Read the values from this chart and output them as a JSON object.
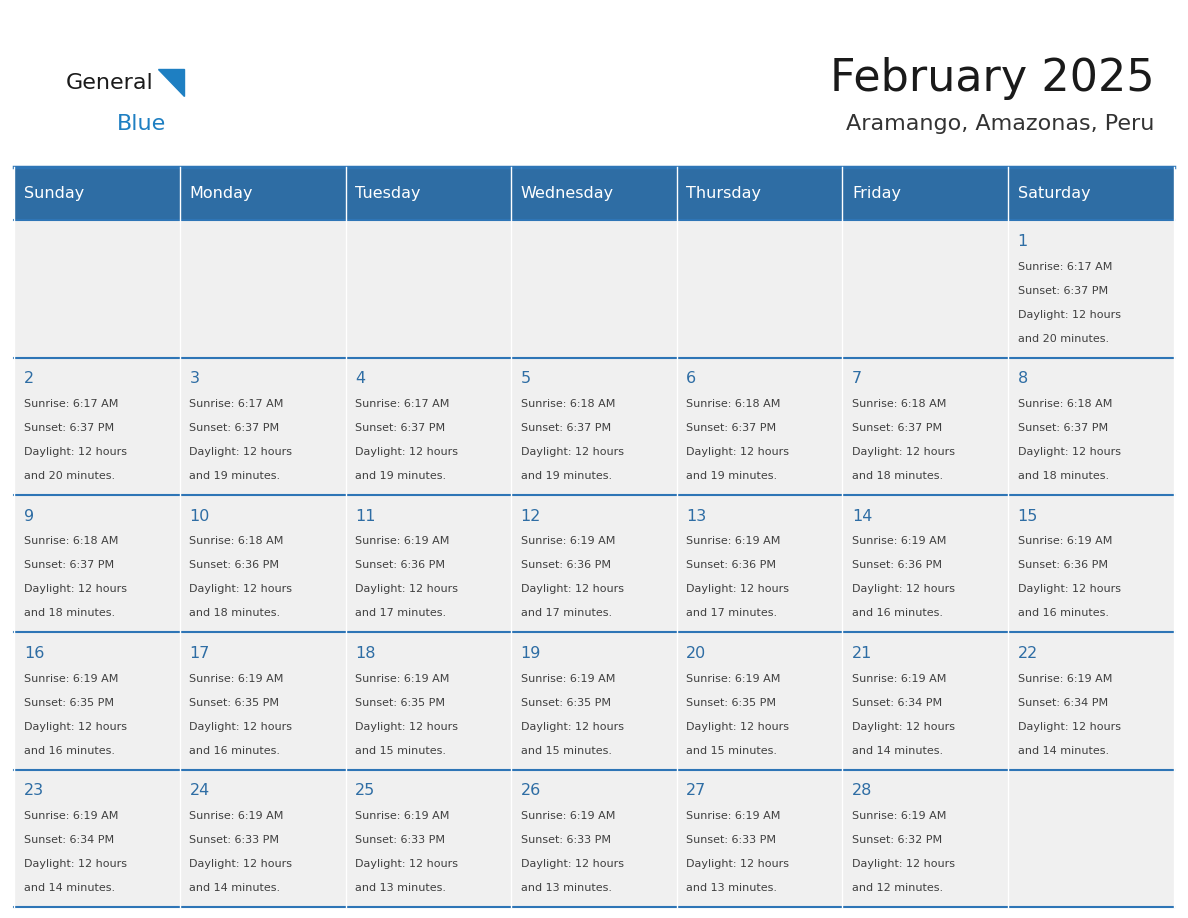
{
  "title": "February 2025",
  "subtitle": "Aramango, Amazonas, Peru",
  "days_of_week": [
    "Sunday",
    "Monday",
    "Tuesday",
    "Wednesday",
    "Thursday",
    "Friday",
    "Saturday"
  ],
  "header_bg": "#2E6DA4",
  "header_text": "#FFFFFF",
  "cell_bg": "#F0F0F0",
  "grid_line_color": "#2E75B6",
  "day_number_color": "#2E6DA4",
  "cell_text_color": "#404040",
  "title_color": "#1a1a1a",
  "subtitle_color": "#333333",
  "logo_general_color": "#1a1a1a",
  "logo_blue_color": "#1E7FC2",
  "weeks": [
    [
      null,
      null,
      null,
      null,
      null,
      null,
      1
    ],
    [
      2,
      3,
      4,
      5,
      6,
      7,
      8
    ],
    [
      9,
      10,
      11,
      12,
      13,
      14,
      15
    ],
    [
      16,
      17,
      18,
      19,
      20,
      21,
      22
    ],
    [
      23,
      24,
      25,
      26,
      27,
      28,
      null
    ]
  ],
  "day_data": {
    "1": {
      "sunrise": "6:17 AM",
      "sunset": "6:37 PM",
      "daylight_hours": 12,
      "daylight_minutes": 20
    },
    "2": {
      "sunrise": "6:17 AM",
      "sunset": "6:37 PM",
      "daylight_hours": 12,
      "daylight_minutes": 20
    },
    "3": {
      "sunrise": "6:17 AM",
      "sunset": "6:37 PM",
      "daylight_hours": 12,
      "daylight_minutes": 19
    },
    "4": {
      "sunrise": "6:17 AM",
      "sunset": "6:37 PM",
      "daylight_hours": 12,
      "daylight_minutes": 19
    },
    "5": {
      "sunrise": "6:18 AM",
      "sunset": "6:37 PM",
      "daylight_hours": 12,
      "daylight_minutes": 19
    },
    "6": {
      "sunrise": "6:18 AM",
      "sunset": "6:37 PM",
      "daylight_hours": 12,
      "daylight_minutes": 19
    },
    "7": {
      "sunrise": "6:18 AM",
      "sunset": "6:37 PM",
      "daylight_hours": 12,
      "daylight_minutes": 18
    },
    "8": {
      "sunrise": "6:18 AM",
      "sunset": "6:37 PM",
      "daylight_hours": 12,
      "daylight_minutes": 18
    },
    "9": {
      "sunrise": "6:18 AM",
      "sunset": "6:37 PM",
      "daylight_hours": 12,
      "daylight_minutes": 18
    },
    "10": {
      "sunrise": "6:18 AM",
      "sunset": "6:36 PM",
      "daylight_hours": 12,
      "daylight_minutes": 18
    },
    "11": {
      "sunrise": "6:19 AM",
      "sunset": "6:36 PM",
      "daylight_hours": 12,
      "daylight_minutes": 17
    },
    "12": {
      "sunrise": "6:19 AM",
      "sunset": "6:36 PM",
      "daylight_hours": 12,
      "daylight_minutes": 17
    },
    "13": {
      "sunrise": "6:19 AM",
      "sunset": "6:36 PM",
      "daylight_hours": 12,
      "daylight_minutes": 17
    },
    "14": {
      "sunrise": "6:19 AM",
      "sunset": "6:36 PM",
      "daylight_hours": 12,
      "daylight_minutes": 16
    },
    "15": {
      "sunrise": "6:19 AM",
      "sunset": "6:36 PM",
      "daylight_hours": 12,
      "daylight_minutes": 16
    },
    "16": {
      "sunrise": "6:19 AM",
      "sunset": "6:35 PM",
      "daylight_hours": 12,
      "daylight_minutes": 16
    },
    "17": {
      "sunrise": "6:19 AM",
      "sunset": "6:35 PM",
      "daylight_hours": 12,
      "daylight_minutes": 16
    },
    "18": {
      "sunrise": "6:19 AM",
      "sunset": "6:35 PM",
      "daylight_hours": 12,
      "daylight_minutes": 15
    },
    "19": {
      "sunrise": "6:19 AM",
      "sunset": "6:35 PM",
      "daylight_hours": 12,
      "daylight_minutes": 15
    },
    "20": {
      "sunrise": "6:19 AM",
      "sunset": "6:35 PM",
      "daylight_hours": 12,
      "daylight_minutes": 15
    },
    "21": {
      "sunrise": "6:19 AM",
      "sunset": "6:34 PM",
      "daylight_hours": 12,
      "daylight_minutes": 14
    },
    "22": {
      "sunrise": "6:19 AM",
      "sunset": "6:34 PM",
      "daylight_hours": 12,
      "daylight_minutes": 14
    },
    "23": {
      "sunrise": "6:19 AM",
      "sunset": "6:34 PM",
      "daylight_hours": 12,
      "daylight_minutes": 14
    },
    "24": {
      "sunrise": "6:19 AM",
      "sunset": "6:33 PM",
      "daylight_hours": 12,
      "daylight_minutes": 14
    },
    "25": {
      "sunrise": "6:19 AM",
      "sunset": "6:33 PM",
      "daylight_hours": 12,
      "daylight_minutes": 13
    },
    "26": {
      "sunrise": "6:19 AM",
      "sunset": "6:33 PM",
      "daylight_hours": 12,
      "daylight_minutes": 13
    },
    "27": {
      "sunrise": "6:19 AM",
      "sunset": "6:33 PM",
      "daylight_hours": 12,
      "daylight_minutes": 13
    },
    "28": {
      "sunrise": "6:19 AM",
      "sunset": "6:32 PM",
      "daylight_hours": 12,
      "daylight_minutes": 12
    }
  },
  "fig_width": 11.88,
  "fig_height": 9.18,
  "dpi": 100
}
